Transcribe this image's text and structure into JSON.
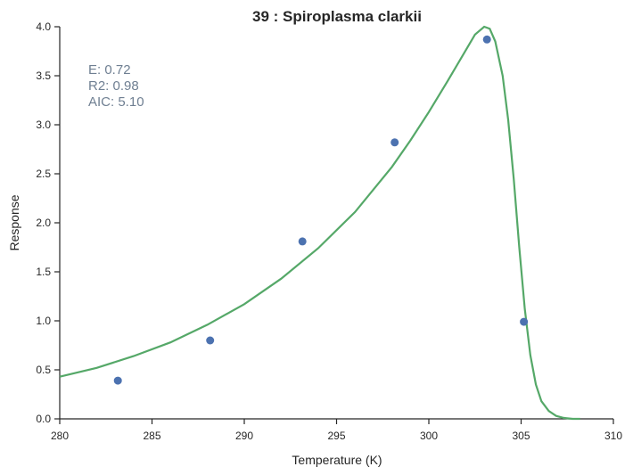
{
  "chart_data": {
    "type": "scatter",
    "title": "39 : Spiroplasma clarkii",
    "xlabel": "Temperature (K)",
    "ylabel": "Response",
    "xlim": [
      280,
      310
    ],
    "ylim": [
      0,
      4.0
    ],
    "grid": false,
    "x_ticks": [
      "280",
      "285",
      "290",
      "295",
      "300",
      "305",
      "310"
    ],
    "y_ticks": [
      "0.0",
      "0.5",
      "1.0",
      "1.5",
      "2.0",
      "2.5",
      "3.0",
      "3.5",
      "4.0"
    ],
    "annotations": [
      "E:  0.72",
      "R2:  0.98",
      "AIC: 5.10"
    ],
    "colors": {
      "points": "#4c72b0",
      "fit": "#55a868",
      "annotation": "#6f7f92"
    },
    "series": [
      {
        "kind": "points",
        "x": [
          283.15,
          288.15,
          293.15,
          298.15,
          303.15,
          305.15
        ],
        "y": [
          0.39,
          0.8,
          1.81,
          2.82,
          3.87,
          0.99
        ]
      },
      {
        "kind": "line",
        "x": [
          280.0,
          282.0,
          284.0,
          286.0,
          288.0,
          290.0,
          292.0,
          294.0,
          296.0,
          298.0,
          299.0,
          300.0,
          301.0,
          302.0,
          302.5,
          303.0,
          303.3,
          303.6,
          304.0,
          304.3,
          304.6,
          304.9,
          305.2,
          305.5,
          305.8,
          306.1,
          306.5,
          306.9,
          307.3,
          307.8,
          308.2
        ],
        "y": [
          0.43,
          0.52,
          0.64,
          0.78,
          0.96,
          1.17,
          1.43,
          1.74,
          2.11,
          2.57,
          2.84,
          3.13,
          3.44,
          3.76,
          3.92,
          4.0,
          3.98,
          3.85,
          3.5,
          3.05,
          2.45,
          1.75,
          1.12,
          0.65,
          0.35,
          0.18,
          0.08,
          0.03,
          0.01,
          0.0,
          0.0
        ]
      }
    ]
  }
}
